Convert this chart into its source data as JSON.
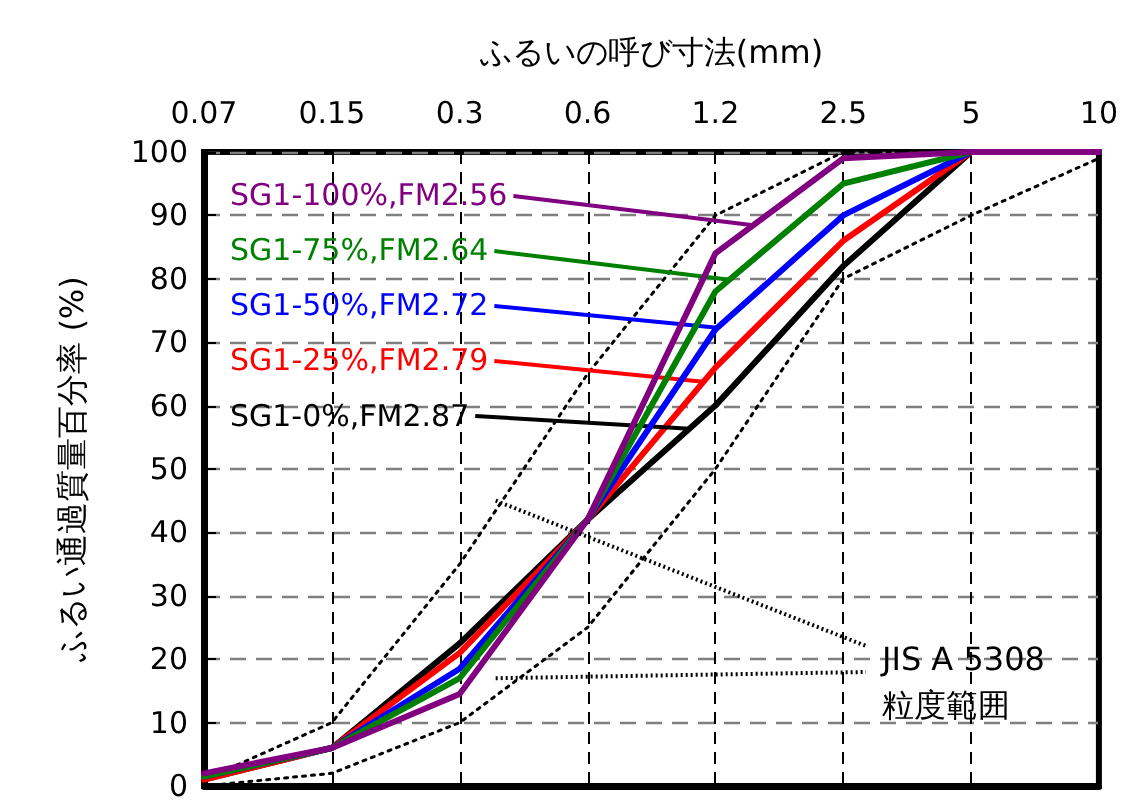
{
  "chart_data": {
    "type": "line",
    "xlabel": "ふるいの呼び寸法(mm)",
    "ylabel": "ふるい通過質量百分率 (%)",
    "categories": [
      "0.07",
      "0.15",
      "0.3",
      "0.6",
      "1.2",
      "2.5",
      "5",
      "10"
    ],
    "ylim": [
      0,
      100
    ],
    "yticks": [
      0,
      10,
      20,
      30,
      40,
      50,
      60,
      70,
      80,
      90,
      100
    ],
    "grid": true,
    "legend": false,
    "marker": "none",
    "line_style": "solid",
    "series": [
      {
        "name": "SG1-0%,FM2.87",
        "color": "#000000",
        "values": [
          1,
          6,
          22.5,
          42,
          60,
          82,
          100,
          100
        ]
      },
      {
        "name": "SG1-25%,FM2.79",
        "color": "#ff0000",
        "values": [
          1,
          6,
          21,
          42,
          66,
          86,
          100,
          100
        ]
      },
      {
        "name": "SG1-50%,FM2.72",
        "color": "#0000ff",
        "values": [
          1.5,
          6,
          18.5,
          42,
          72,
          90,
          100,
          100
        ]
      },
      {
        "name": "SG1-75%,FM2.64",
        "color": "#008000",
        "values": [
          1.5,
          6,
          17,
          42,
          78,
          95,
          100,
          100
        ]
      },
      {
        "name": "SG1-100%,FM2.56",
        "color": "#800080",
        "values": [
          2,
          6,
          14.5,
          42,
          84,
          99,
          100,
          100
        ]
      },
      {
        "color": "#000000",
        "line_style": "dotted",
        "values": [
          1,
          10,
          35,
          65,
          90,
          100,
          100,
          100
        ]
      },
      {
        "color": "#000000",
        "line_style": "dotted",
        "values": [
          0,
          2,
          10,
          25,
          50,
          80,
          90,
          99
        ]
      }
    ],
    "annotations": [
      "JIS A 5308\n粒度範囲"
    ]
  }
}
